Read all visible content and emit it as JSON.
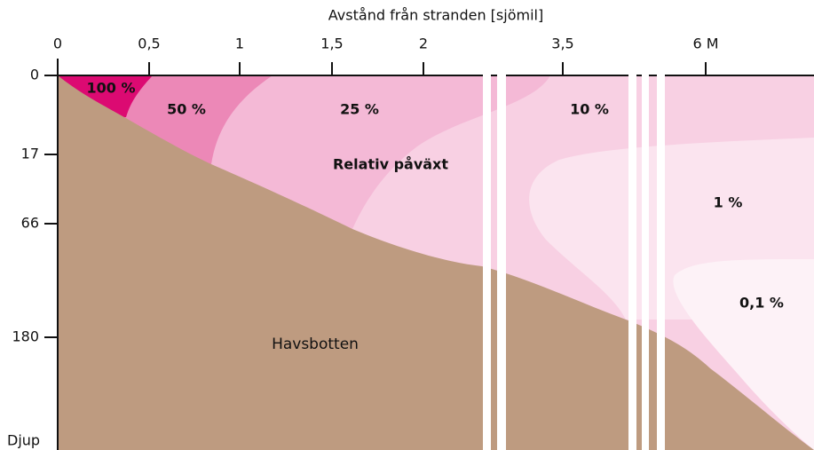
{
  "axis_title": "Avstånd från stranden  [sjömil]",
  "x_labels": [
    "0",
    "0,5",
    "1",
    "1,5",
    "2",
    "3,5",
    "6 M"
  ],
  "y_labels": [
    "0",
    "17",
    "66",
    "180"
  ],
  "y_axis_label": "Djup",
  "zones": [
    "100 %",
    "50 %",
    "25 %",
    "10 %",
    "1 %",
    "0,1 %"
  ],
  "annotation": "Relativ påväxt",
  "seabed": "Havsbotten"
}
